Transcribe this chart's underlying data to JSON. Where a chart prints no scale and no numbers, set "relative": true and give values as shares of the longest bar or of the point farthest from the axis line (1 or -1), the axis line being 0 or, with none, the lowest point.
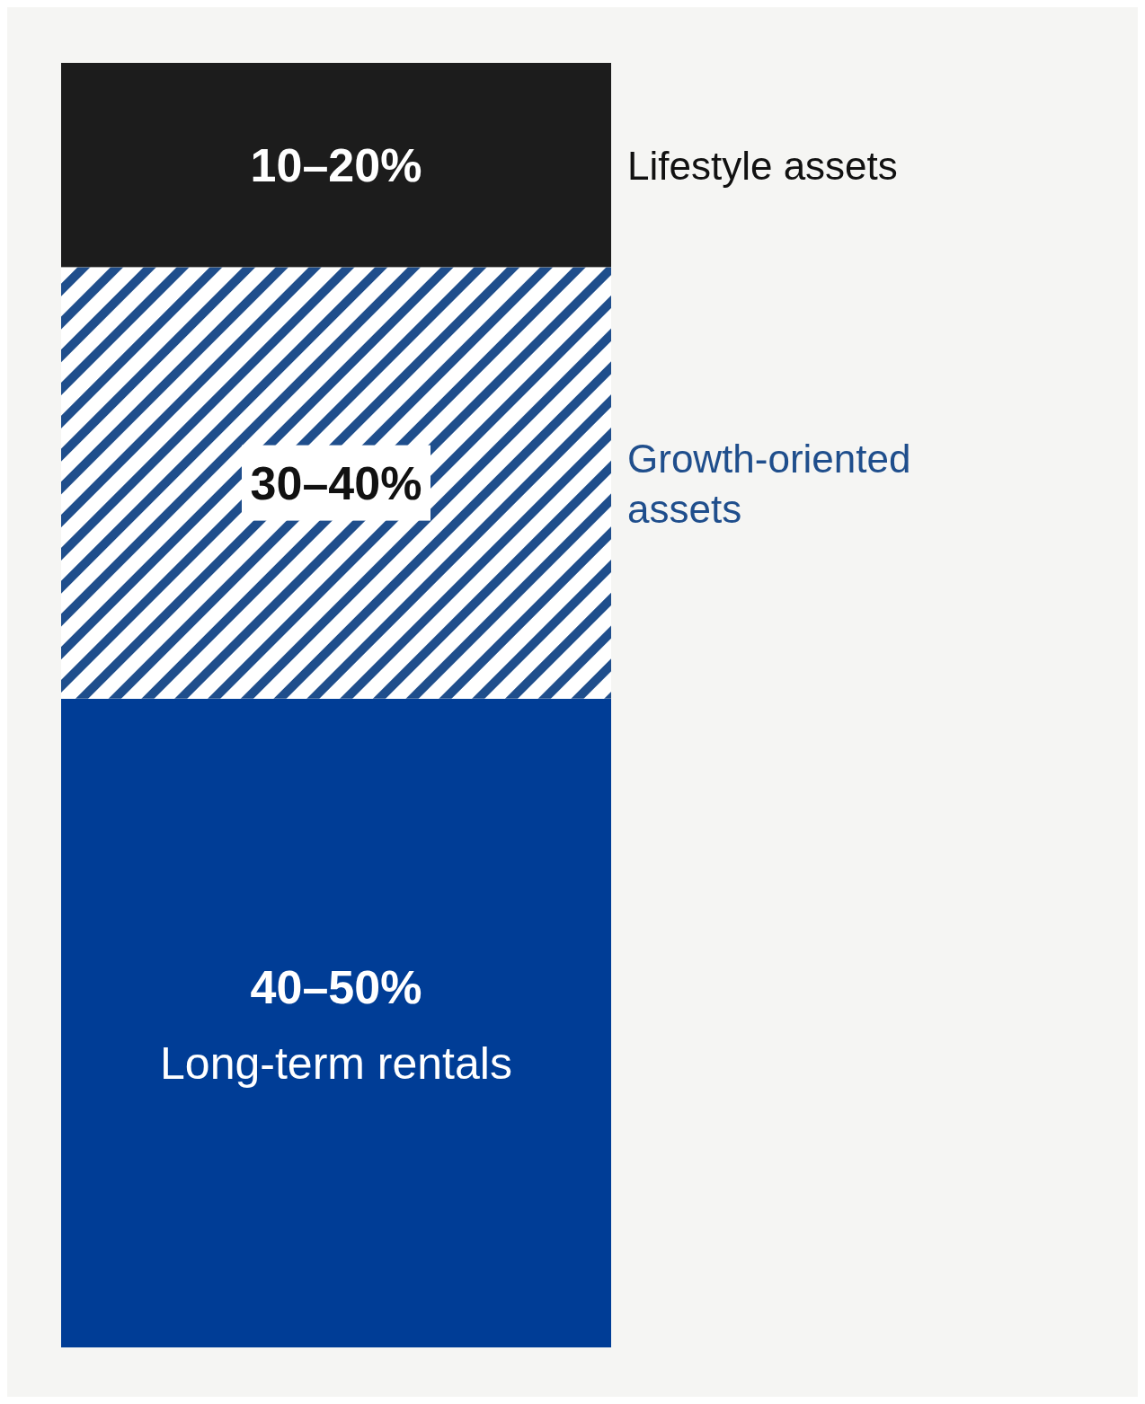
{
  "chart_data": {
    "type": "bar",
    "stacked": true,
    "relative": true,
    "categories": [
      null
    ],
    "series": [
      {
        "name": "Long-term rentals",
        "color": "#003d96",
        "values": [
          0.505
        ]
      },
      {
        "name": "Growth-oriented assets",
        "color": "#1f4e8c",
        "values": [
          0.336
        ]
      },
      {
        "name": "Lifestyle assets",
        "color": "#1c1c1c",
        "values": [
          0.159
        ]
      }
    ],
    "annotations": [
      "40–50%",
      "30–40%",
      "10–20%"
    ]
  }
}
